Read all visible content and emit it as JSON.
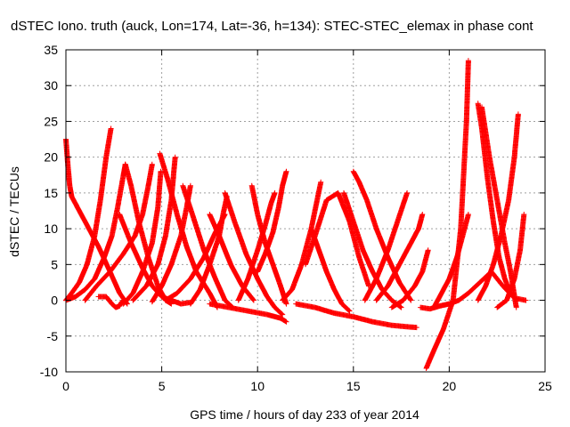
{
  "chart_data": {
    "type": "scatter",
    "title": "dSTEC Iono. truth (auck, Lon=174, Lat=-36, h=134): STEC-STEC_elemax in phase cont",
    "xlabel": "GPS time / hours of day 233 of year 2014",
    "ylabel": "dSTEC  / TECUs",
    "xlim": [
      0,
      25
    ],
    "ylim": [
      -10,
      35
    ],
    "x_ticks": [
      0,
      5,
      10,
      15,
      20,
      25
    ],
    "y_ticks": [
      -10,
      -5,
      0,
      5,
      10,
      15,
      20,
      25,
      30,
      35
    ],
    "grid": true,
    "marker": "+",
    "color": "#ff0000",
    "series": [
      {
        "x": [
          0.0,
          0.1,
          0.2,
          0.3,
          0.5,
          0.8,
          1.2,
          1.7,
          2.3,
          2.8,
          3.2
        ],
        "y": [
          22.5,
          19,
          16,
          14.5,
          13.5,
          12,
          10,
          7.5,
          4,
          1,
          -0.5
        ]
      },
      {
        "x": [
          0.0,
          0.3,
          0.7,
          1.1,
          1.5,
          1.8,
          2.1,
          2.35
        ],
        "y": [
          0,
          1,
          2.5,
          5,
          9,
          14,
          20,
          24
        ]
      },
      {
        "x": [
          1.7,
          2.1,
          2.4,
          2.6,
          2.8,
          2.9,
          3.0
        ],
        "y": [
          0.5,
          0.5,
          -0.5,
          -1,
          -0.8,
          -0.3,
          0
        ]
      },
      {
        "x": [
          0.0,
          0.5,
          1.0,
          1.5,
          2.0,
          2.4,
          2.7,
          3.0,
          3.1
        ],
        "y": [
          0,
          0.5,
          1.5,
          3,
          6,
          9,
          13,
          17.5,
          19
        ]
      },
      {
        "x": [
          3.1,
          3.4,
          3.8,
          4.3,
          4.8,
          5.2,
          5.5
        ],
        "y": [
          19,
          16,
          11,
          6,
          2,
          0,
          -0.5
        ]
      },
      {
        "x": [
          1.0,
          1.6,
          2.3,
          3.0,
          3.6,
          4.0,
          4.3,
          4.5
        ],
        "y": [
          0,
          2,
          4,
          6.5,
          9,
          12,
          16,
          19
        ]
      },
      {
        "x": [
          3.0,
          3.5,
          4.0,
          4.5,
          4.8,
          4.95
        ],
        "y": [
          -0.5,
          1,
          4,
          8,
          13,
          18
        ]
      },
      {
        "x": [
          2.8,
          3.4,
          4.0,
          4.5,
          5.0,
          5.5,
          6.0,
          6.5
        ],
        "y": [
          12,
          8,
          4.5,
          2,
          0.5,
          0,
          -0.5,
          -0.3
        ]
      },
      {
        "x": [
          3.5,
          4.2,
          4.8,
          5.2,
          5.5,
          5.7
        ],
        "y": [
          0,
          2,
          5,
          9,
          14,
          20
        ]
      },
      {
        "x": [
          4.9,
          5.3,
          5.8,
          6.3,
          6.8,
          7.5,
          7.9
        ],
        "y": [
          20.5,
          17,
          12,
          7.5,
          4,
          1,
          -1
        ]
      },
      {
        "x": [
          4.5,
          5.0,
          5.5,
          6.0,
          6.3,
          6.5
        ],
        "y": [
          -0.2,
          2,
          5,
          9,
          13,
          16
        ]
      },
      {
        "x": [
          5.2,
          5.8,
          6.5,
          7.2,
          7.8,
          8.3
        ],
        "y": [
          0,
          1,
          3,
          6,
          9.5,
          12
        ]
      },
      {
        "x": [
          6.1,
          6.6,
          7.2,
          7.8,
          8.3,
          8.7
        ],
        "y": [
          16,
          12,
          7,
          3,
          0,
          -1
        ]
      },
      {
        "x": [
          6.5,
          7.0,
          7.5,
          8.0,
          8.2,
          8.4
        ],
        "y": [
          -0.5,
          1.5,
          5,
          9,
          12,
          14.5
        ]
      },
      {
        "x": [
          7.5,
          8.0,
          8.6,
          9.2,
          9.8
        ],
        "y": [
          12,
          9,
          5,
          2,
          0
        ]
      },
      {
        "x": [
          8.3,
          8.8,
          9.4,
          10.0,
          10.5,
          10.9,
          11.3
        ],
        "y": [
          15,
          11,
          6.5,
          3,
          0.5,
          -1,
          -2
        ]
      },
      {
        "x": [
          7.5,
          8.5,
          9.5,
          10.5,
          11.2,
          11.5
        ],
        "y": [
          -0.5,
          -1,
          -1.5,
          -2,
          -2.5,
          -3
        ]
      },
      {
        "x": [
          9.7,
          10.0,
          10.4,
          10.8,
          11.2,
          11.5
        ],
        "y": [
          16,
          12,
          8,
          5,
          2,
          -0.5
        ]
      },
      {
        "x": [
          9.0,
          9.5,
          10.0,
          10.4,
          10.7,
          10.9
        ],
        "y": [
          0,
          3,
          7,
          10.5,
          13.5,
          15
        ]
      },
      {
        "x": [
          10.0,
          10.4,
          10.8,
          11.1,
          11.3,
          11.5
        ],
        "y": [
          4,
          6.5,
          9.5,
          13,
          16,
          18
        ]
      },
      {
        "x": [
          11.3,
          11.8,
          12.3,
          12.8,
          13.3
        ],
        "y": [
          0,
          1.5,
          5,
          10,
          16.5
        ]
      },
      {
        "x": [
          12.8,
          13.2,
          13.6,
          14.0,
          14.4,
          14.8
        ],
        "y": [
          10,
          7,
          4,
          1.5,
          -0.5,
          -1.5
        ]
      },
      {
        "x": [
          12.5,
          13.0,
          13.6,
          14.2,
          14.8,
          15.3,
          15.8
        ],
        "y": [
          5,
          9,
          14,
          15,
          11,
          6,
          2
        ]
      },
      {
        "x": [
          12.0,
          13.0,
          14.0,
          15.0,
          16.0,
          17.0,
          17.8,
          18.3
        ],
        "y": [
          -0.5,
          -1,
          -1.8,
          -2.3,
          -3,
          -3.5,
          -3.7,
          -3.8
        ]
      },
      {
        "x": [
          14.5,
          15.0,
          15.5,
          16.0,
          16.5,
          17.0,
          17.5
        ],
        "y": [
          15,
          11,
          7,
          4,
          1.5,
          0,
          -1
        ]
      },
      {
        "x": [
          15.0,
          15.3,
          15.7,
          16.2,
          16.8,
          17.4,
          18.0
        ],
        "y": [
          18,
          16.5,
          14,
          10,
          6,
          2.5,
          0
        ]
      },
      {
        "x": [
          15.6,
          16.2,
          16.8,
          17.3,
          17.8
        ],
        "y": [
          0,
          3,
          7,
          11,
          15
        ]
      },
      {
        "x": [
          16.2,
          16.8,
          17.4,
          18.0,
          18.4,
          18.6
        ],
        "y": [
          0,
          2,
          5,
          8,
          10,
          12
        ]
      },
      {
        "x": [
          17.0,
          17.6,
          18.2,
          18.6,
          18.9
        ],
        "y": [
          -1,
          0,
          2,
          4,
          7
        ]
      },
      {
        "x": [
          18.5,
          19.0,
          19.5,
          20.0,
          20.5,
          21.0
        ],
        "y": [
          -1,
          -1.2,
          -0.8,
          -0.5,
          0,
          1
        ]
      },
      {
        "x": [
          18.8,
          19.2,
          19.7,
          20.2,
          20.6,
          20.9,
          21.0
        ],
        "y": [
          -9.5,
          -7,
          -4,
          0,
          10,
          25,
          33.5
        ]
      },
      {
        "x": [
          19.2,
          19.6,
          20.0,
          20.4,
          20.7,
          21.0
        ],
        "y": [
          -1,
          1,
          3,
          6,
          9,
          12
        ]
      },
      {
        "x": [
          21.5,
          21.7,
          22.0,
          22.3,
          22.6,
          22.9,
          23.2
        ],
        "y": [
          27.5,
          24,
          17,
          11,
          6,
          3,
          1
        ]
      },
      {
        "x": [
          21.7,
          22.1,
          22.5,
          22.9,
          23.2,
          23.5
        ],
        "y": [
          27,
          20,
          14,
          8,
          4,
          -1
        ]
      },
      {
        "x": [
          21.5,
          21.9,
          22.3,
          22.7,
          23.1,
          23.4,
          23.6
        ],
        "y": [
          0,
          2,
          5,
          9,
          14,
          20,
          26
        ]
      },
      {
        "x": [
          22.5,
          23.0,
          23.4,
          23.7,
          23.9
        ],
        "y": [
          -1,
          0,
          3,
          7,
          12
        ]
      },
      {
        "x": [
          21.0,
          21.6,
          22.2,
          22.8,
          23.4,
          24.0
        ],
        "y": [
          1,
          2.5,
          4,
          2,
          0.3,
          0
        ]
      }
    ]
  }
}
